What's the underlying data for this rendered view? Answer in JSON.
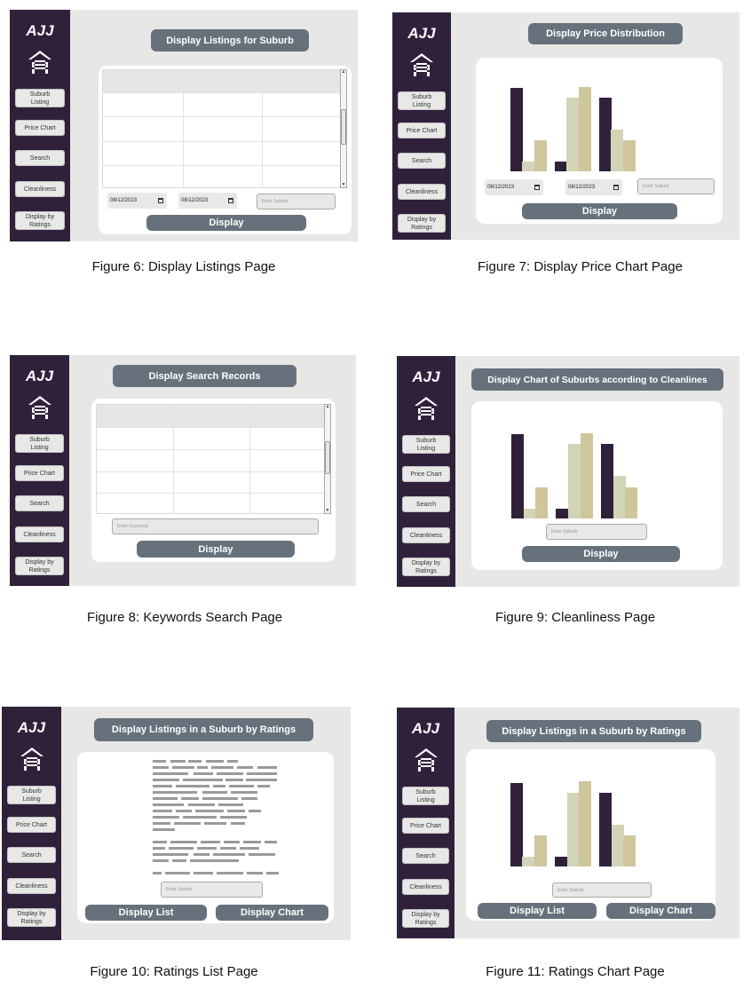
{
  "app": {
    "logo_text": "AJJ"
  },
  "nav_items": [
    "Suburb\nListing",
    "Price Chart",
    "Search",
    "Cleanliness",
    "Display by\nRatings"
  ],
  "colors": {
    "sidebar": "#30213b",
    "panel_bg": "#e7e7e5",
    "button": "#66717c",
    "bar_dark": "#30213b",
    "bar_light": "#d2d4b8",
    "bar_tan": "#cfc69c"
  },
  "figures": [
    {
      "caption": "Figure 6: Display Listings Page",
      "header": "Display Listings for Suburb",
      "date_from": "08/12/2023",
      "date_to": "08/12/2023",
      "suburb_placeholder": "Enter Suburb",
      "button": "Display"
    },
    {
      "caption": "Figure 7: Display Price Chart Page",
      "header": "Display Price Distribution",
      "date_from": "08/12/2023",
      "date_to": "08/12/2023",
      "suburb_placeholder": "Enter Suburb",
      "button": "Display",
      "chart_data": {
        "type": "bar",
        "groups": [
          {
            "values": [
              0.78,
              0.09,
              0.29
            ]
          },
          {
            "values": [
              0.09,
              0.69,
              0.79
            ]
          },
          {
            "values": [
              0.69,
              0.39,
              0.29
            ]
          }
        ]
      }
    },
    {
      "caption": "Figure 8: Keywords Search Page",
      "header": "Display Search Records",
      "keyword_placeholder": "Enter Keywords",
      "button": "Display"
    },
    {
      "caption": "Figure 9: Cleanliness Page",
      "header": "Display Chart of Suburbs according to Cleanlines",
      "suburb_placeholder": "Enter Suburb",
      "button": "Display",
      "chart_data": {
        "type": "bar",
        "groups": [
          {
            "values": [
              0.78,
              0.09,
              0.29
            ]
          },
          {
            "values": [
              0.09,
              0.69,
              0.79
            ]
          },
          {
            "values": [
              0.69,
              0.39,
              0.29
            ]
          }
        ]
      }
    },
    {
      "caption": "Figure 10: Ratings List Page",
      "header": "Display Listings in a Suburb by Ratings",
      "suburb_placeholder": "Enter Suburb",
      "button_list": "Display List",
      "button_chart": "Display Chart"
    },
    {
      "caption": "Figure 11: Ratings Chart Page",
      "header": "Display Listings in a Suburb by Ratings",
      "suburb_placeholder": "Enter Suburb",
      "button_list": "Display List",
      "button_chart": "Display Chart",
      "chart_data": {
        "type": "bar",
        "groups": [
          {
            "values": [
              0.78,
              0.09,
              0.29
            ]
          },
          {
            "values": [
              0.09,
              0.69,
              0.79
            ]
          },
          {
            "values": [
              0.69,
              0.39,
              0.29
            ]
          }
        ]
      }
    }
  ]
}
